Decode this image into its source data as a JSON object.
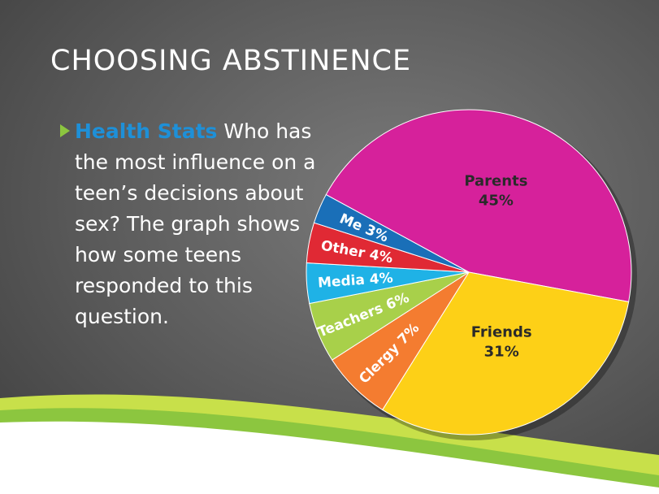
{
  "title": "CHOOSING ABSTINENCE",
  "bullet": {
    "lead": "Health Stats",
    "text": "Who has the most influence on a teen’s decisions about sex? The graph shows how some teens responded to this question."
  },
  "chart_data": {
    "type": "pie",
    "categories": [
      "Parents",
      "Friends",
      "Clergy",
      "Teachers",
      "Media",
      "Other",
      "Me"
    ],
    "values": [
      45,
      31,
      7,
      6,
      4,
      4,
      3
    ],
    "value_labels": [
      "45%",
      "31%",
      "7%",
      "6%",
      "4%",
      "4%",
      "3%"
    ],
    "colors": [
      "#d6219b",
      "#fdd017",
      "#f47c30",
      "#a8d04a",
      "#1fb2e6",
      "#e02934",
      "#1a6fb8"
    ]
  }
}
